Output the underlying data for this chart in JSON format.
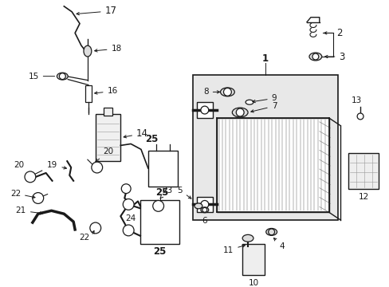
{
  "bg_color": "#ffffff",
  "line_color": "#1a1a1a",
  "gray_color": "#888888",
  "light_gray": "#cccccc",
  "font_size": 7.5
}
